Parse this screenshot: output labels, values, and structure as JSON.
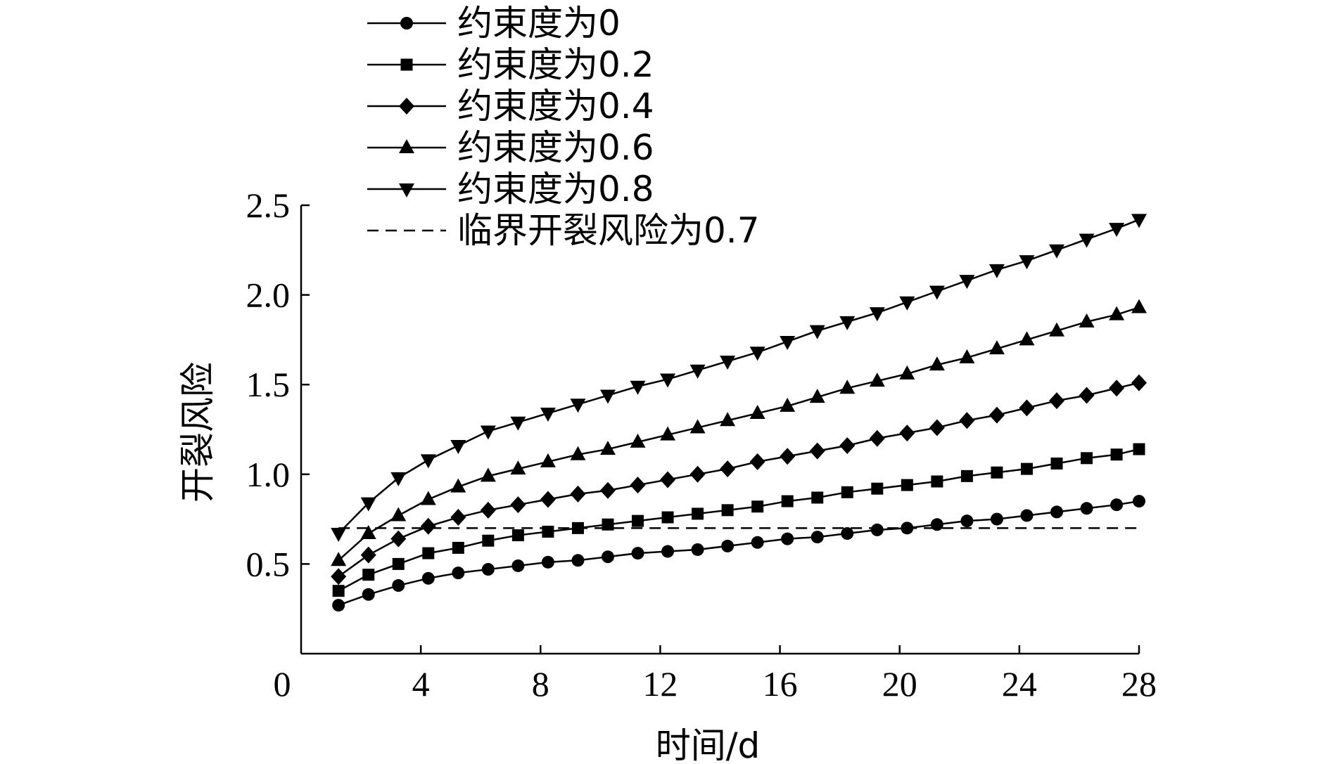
{
  "chart_data": {
    "type": "line",
    "xlabel": "时间/d",
    "ylabel": "开裂风险",
    "xlim": [
      0,
      28
    ],
    "ylim": [
      0,
      2.5
    ],
    "x_ticks": [
      "0",
      "4",
      "8",
      "12",
      "16",
      "20",
      "24",
      "28"
    ],
    "y_ticks": [
      "0.5",
      "1.0",
      "1.5",
      "2.0",
      "2.5"
    ],
    "grid": false,
    "legend_position": "top-left",
    "x": [
      1.25,
      2.25,
      3.25,
      4.25,
      5.25,
      6.25,
      7.25,
      8.25,
      9.25,
      10.25,
      11.25,
      12.25,
      13.25,
      14.25,
      15.25,
      16.25,
      17.25,
      18.25,
      19.25,
      20.25,
      21.25,
      22.25,
      23.25,
      24.25,
      25.25,
      26.25,
      27.25,
      28.0
    ],
    "series": [
      {
        "name": "约束度为0",
        "marker": "circle",
        "values": [
          0.27,
          0.33,
          0.38,
          0.42,
          0.45,
          0.47,
          0.49,
          0.51,
          0.52,
          0.54,
          0.56,
          0.57,
          0.58,
          0.6,
          0.62,
          0.64,
          0.65,
          0.67,
          0.69,
          0.7,
          0.72,
          0.74,
          0.75,
          0.77,
          0.79,
          0.81,
          0.83,
          0.85
        ]
      },
      {
        "name": "约束度为0.2",
        "marker": "square",
        "values": [
          0.35,
          0.44,
          0.5,
          0.56,
          0.59,
          0.63,
          0.66,
          0.68,
          0.7,
          0.72,
          0.74,
          0.76,
          0.78,
          0.8,
          0.82,
          0.85,
          0.87,
          0.9,
          0.92,
          0.94,
          0.96,
          0.99,
          1.01,
          1.03,
          1.06,
          1.09,
          1.11,
          1.14
        ]
      },
      {
        "name": "约束度为0.4",
        "marker": "diamond",
        "values": [
          0.43,
          0.55,
          0.64,
          0.71,
          0.76,
          0.8,
          0.83,
          0.86,
          0.89,
          0.91,
          0.94,
          0.97,
          1.0,
          1.03,
          1.07,
          1.1,
          1.13,
          1.16,
          1.2,
          1.23,
          1.26,
          1.3,
          1.33,
          1.37,
          1.41,
          1.44,
          1.48,
          1.51
        ]
      },
      {
        "name": "约束度为0.6",
        "marker": "triangle-up",
        "values": [
          0.52,
          0.67,
          0.77,
          0.86,
          0.93,
          0.99,
          1.03,
          1.07,
          1.11,
          1.14,
          1.18,
          1.22,
          1.26,
          1.3,
          1.34,
          1.38,
          1.43,
          1.48,
          1.52,
          1.56,
          1.61,
          1.65,
          1.7,
          1.75,
          1.8,
          1.85,
          1.89,
          1.93
        ]
      },
      {
        "name": "约束度为0.8",
        "marker": "triangle-down",
        "values": [
          0.67,
          0.84,
          0.98,
          1.08,
          1.16,
          1.24,
          1.29,
          1.34,
          1.39,
          1.44,
          1.49,
          1.53,
          1.58,
          1.63,
          1.68,
          1.74,
          1.8,
          1.85,
          1.9,
          1.96,
          2.02,
          2.08,
          2.14,
          2.19,
          2.25,
          2.31,
          2.37,
          2.42
        ]
      }
    ],
    "reference_line": {
      "name": "临界开裂风险为0.7",
      "y": 0.7,
      "x_start": 1.25,
      "x_end": 28.0,
      "style": "dashed"
    }
  }
}
